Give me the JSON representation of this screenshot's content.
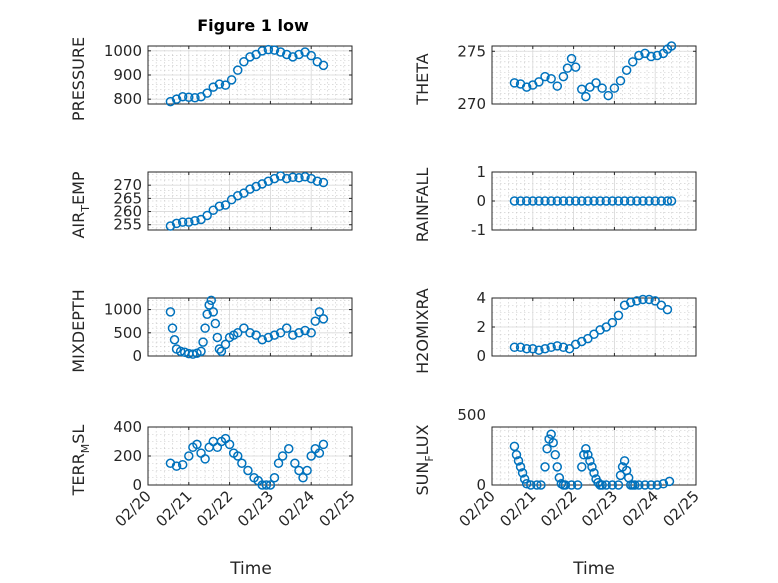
{
  "figure_title": "Figure 1 low",
  "marker_color": "#0072BD",
  "chart_data": [
    {
      "type": "scatter",
      "ylabel": "PRESSURE",
      "ylim": [
        780,
        1020
      ],
      "yticks": [
        800,
        900,
        1000
      ],
      "show_x_ticklabels": false,
      "grid": true,
      "x": [
        20.55,
        20.7,
        20.85,
        21.0,
        21.15,
        21.3,
        21.45,
        21.6,
        21.75,
        21.9,
        22.05,
        22.2,
        22.35,
        22.5,
        22.65,
        22.8,
        22.95,
        23.1,
        23.25,
        23.4,
        23.55,
        23.7,
        23.85,
        24.0,
        24.15,
        24.3
      ],
      "y": [
        790,
        800,
        810,
        808,
        806,
        810,
        825,
        850,
        862,
        858,
        880,
        920,
        955,
        975,
        985,
        1000,
        1005,
        1003,
        995,
        985,
        975,
        985,
        995,
        980,
        955,
        940
      ]
    },
    {
      "type": "scatter",
      "ylabel": "THETA",
      "ylim": [
        270,
        275.5
      ],
      "yticks": [
        270,
        275
      ],
      "show_x_ticklabels": false,
      "grid": true,
      "x": [
        20.55,
        20.7,
        20.85,
        21.0,
        21.15,
        21.3,
        21.45,
        21.6,
        21.75,
        21.85,
        21.95,
        22.05,
        22.2,
        22.3,
        22.4,
        22.55,
        22.7,
        22.85,
        23.0,
        23.15,
        23.3,
        23.45,
        23.6,
        23.75,
        23.9,
        24.05,
        24.2,
        24.3,
        24.4
      ],
      "y": [
        272.0,
        271.9,
        271.6,
        271.8,
        272.1,
        272.6,
        272.4,
        271.7,
        272.6,
        273.4,
        274.3,
        273.5,
        271.4,
        270.7,
        271.6,
        272.0,
        271.5,
        270.8,
        271.5,
        272.2,
        273.2,
        274.0,
        274.6,
        274.8,
        274.5,
        274.6,
        274.8,
        275.2,
        275.5
      ]
    },
    {
      "type": "scatter",
      "ylabel": "AIR_TEMP",
      "ylim": [
        253,
        275
      ],
      "yticks": [
        255,
        260,
        265,
        270
      ],
      "show_x_ticklabels": false,
      "grid": true,
      "x": [
        20.55,
        20.7,
        20.85,
        21.0,
        21.15,
        21.3,
        21.45,
        21.6,
        21.75,
        21.9,
        22.05,
        22.2,
        22.35,
        22.5,
        22.65,
        22.8,
        22.95,
        23.1,
        23.25,
        23.4,
        23.55,
        23.7,
        23.85,
        24.0,
        24.15,
        24.3
      ],
      "y": [
        254.5,
        255.5,
        256.0,
        256.0,
        256.5,
        257.0,
        258.5,
        260.5,
        262.0,
        262.5,
        264.5,
        266.0,
        267.0,
        268.5,
        269.5,
        270.5,
        271.5,
        272.5,
        273.5,
        272.5,
        273.0,
        272.8,
        273.2,
        272.5,
        271.5,
        271.0
      ]
    },
    {
      "type": "scatter",
      "ylabel": "RAINFALL",
      "ylim": [
        -1,
        1
      ],
      "yticks": [
        -1,
        0,
        1
      ],
      "show_x_ticklabels": false,
      "grid": true,
      "x": [
        20.55,
        20.7,
        20.85,
        21.0,
        21.15,
        21.3,
        21.45,
        21.6,
        21.75,
        21.9,
        22.05,
        22.2,
        22.35,
        22.5,
        22.65,
        22.8,
        22.95,
        23.1,
        23.25,
        23.4,
        23.55,
        23.7,
        23.85,
        24.0,
        24.15,
        24.3,
        24.4
      ],
      "y": [
        0,
        0,
        0,
        0,
        0,
        0,
        0,
        0,
        0,
        0,
        0,
        0,
        0,
        0,
        0,
        0,
        0,
        0,
        0,
        0,
        0,
        0,
        0,
        0,
        0,
        0,
        0
      ]
    },
    {
      "type": "scatter",
      "ylabel": "MIXDEPTH",
      "ylim": [
        0,
        1250
      ],
      "yticks": [
        0,
        500,
        1000
      ],
      "show_x_ticklabels": false,
      "grid": true,
      "x": [
        20.55,
        20.6,
        20.65,
        20.7,
        20.8,
        20.9,
        21.0,
        21.1,
        21.2,
        21.3,
        21.35,
        21.4,
        21.45,
        21.5,
        21.55,
        21.6,
        21.65,
        21.7,
        21.75,
        21.8,
        21.9,
        22.0,
        22.1,
        22.2,
        22.35,
        22.5,
        22.65,
        22.8,
        22.95,
        23.1,
        23.25,
        23.4,
        23.55,
        23.7,
        23.85,
        24.0,
        24.1,
        24.2,
        24.3
      ],
      "y": [
        950,
        600,
        350,
        150,
        100,
        80,
        50,
        40,
        60,
        100,
        300,
        600,
        900,
        1100,
        1200,
        950,
        700,
        400,
        150,
        100,
        250,
        400,
        450,
        500,
        600,
        500,
        450,
        350,
        400,
        450,
        500,
        600,
        450,
        500,
        550,
        500,
        750,
        950,
        800
      ]
    },
    {
      "type": "scatter",
      "ylabel": "H2OMIXRA",
      "ylim": [
        0,
        4
      ],
      "yticks": [
        0,
        2,
        4
      ],
      "show_x_ticklabels": false,
      "grid": true,
      "x": [
        20.55,
        20.7,
        20.85,
        21.0,
        21.15,
        21.3,
        21.45,
        21.6,
        21.75,
        21.9,
        22.05,
        22.2,
        22.35,
        22.5,
        22.65,
        22.8,
        22.95,
        23.1,
        23.25,
        23.4,
        23.55,
        23.7,
        23.85,
        24.0,
        24.15,
        24.3
      ],
      "y": [
        0.6,
        0.6,
        0.5,
        0.5,
        0.4,
        0.5,
        0.6,
        0.7,
        0.6,
        0.5,
        0.8,
        1.0,
        1.2,
        1.5,
        1.8,
        2.0,
        2.3,
        2.8,
        3.5,
        3.7,
        3.8,
        3.9,
        3.9,
        3.8,
        3.5,
        3.2
      ]
    },
    {
      "type": "scatter",
      "ylabel": "TERR_MSL",
      "ylim": [
        0,
        400
      ],
      "yticks": [
        0,
        200,
        400
      ],
      "show_x_ticklabels": true,
      "grid": true,
      "x": [
        20.55,
        20.7,
        20.85,
        21.0,
        21.1,
        21.2,
        21.3,
        21.4,
        21.5,
        21.6,
        21.7,
        21.8,
        21.9,
        22.0,
        22.1,
        22.2,
        22.3,
        22.45,
        22.6,
        22.7,
        22.8,
        22.9,
        23.0,
        23.1,
        23.2,
        23.3,
        23.45,
        23.6,
        23.7,
        23.8,
        23.9,
        24.0,
        24.1,
        24.2,
        24.3
      ],
      "y": [
        150,
        130,
        140,
        200,
        260,
        280,
        220,
        180,
        260,
        300,
        260,
        300,
        320,
        280,
        220,
        200,
        150,
        100,
        50,
        30,
        0,
        0,
        0,
        50,
        150,
        200,
        250,
        150,
        100,
        50,
        100,
        200,
        250,
        220,
        280
      ]
    },
    {
      "type": "scatter",
      "ylabel": "SUN_FLUX",
      "ylim": [
        0,
        480
      ],
      "yticks": [
        0,
        500
      ],
      "show_x_ticklabels": true,
      "grid": true,
      "x": [
        20.55,
        20.6,
        20.65,
        20.7,
        20.75,
        20.8,
        20.85,
        20.95,
        21.1,
        21.2,
        21.3,
        21.35,
        21.4,
        21.45,
        21.5,
        21.55,
        21.6,
        21.65,
        21.7,
        21.75,
        21.8,
        21.95,
        22.1,
        22.2,
        22.25,
        22.3,
        22.35,
        22.4,
        22.45,
        22.5,
        22.55,
        22.6,
        22.65,
        22.7,
        22.8,
        22.95,
        23.1,
        23.15,
        23.2,
        23.25,
        23.3,
        23.35,
        23.4,
        23.45,
        23.5,
        23.6,
        23.75,
        23.9,
        24.05,
        24.2,
        24.35
      ],
      "y": [
        320,
        250,
        200,
        150,
        100,
        50,
        10,
        0,
        0,
        0,
        150,
        300,
        380,
        420,
        350,
        250,
        150,
        60,
        10,
        0,
        0,
        0,
        0,
        150,
        250,
        300,
        250,
        200,
        150,
        100,
        50,
        20,
        0,
        0,
        0,
        0,
        0,
        80,
        150,
        200,
        120,
        60,
        0,
        0,
        0,
        0,
        0,
        0,
        0,
        10,
        30
      ]
    }
  ],
  "shared_x": {
    "type": "date",
    "xlim": [
      20,
      25
    ],
    "tick_values": [
      20,
      21,
      22,
      23,
      24,
      25
    ],
    "tick_labels": [
      "02/20",
      "02/21",
      "02/22",
      "02/23",
      "02/24",
      "02/25"
    ],
    "xlabel_left": "Time",
    "xlabel_right": "Time"
  }
}
